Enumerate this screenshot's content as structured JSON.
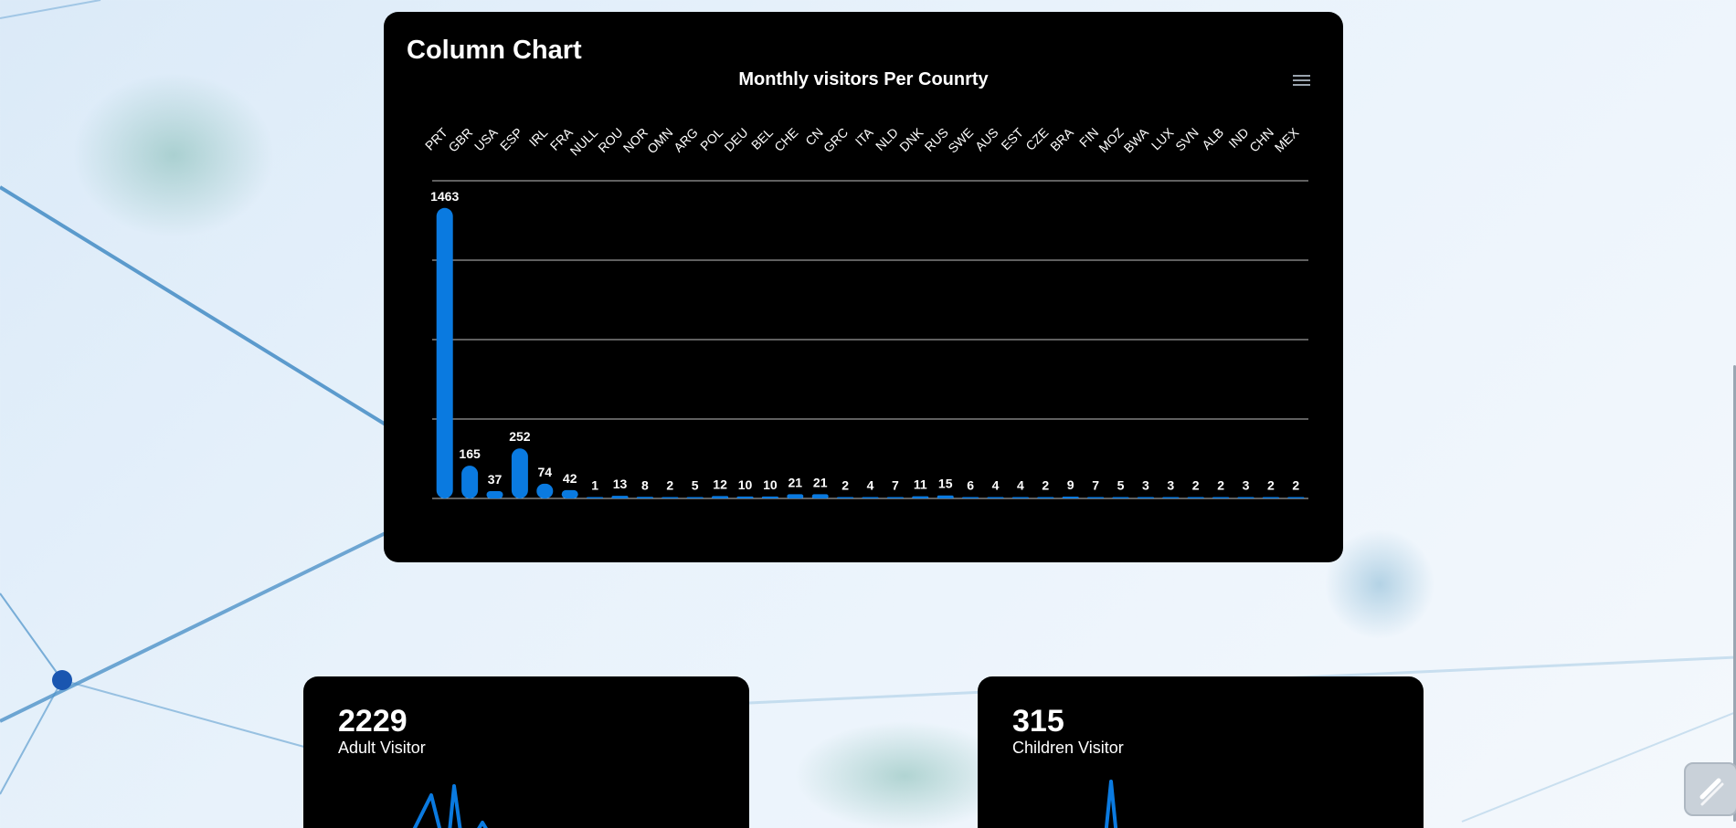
{
  "chart_card": {
    "heading": "Column Chart",
    "menu_icon": "hamburger-menu-icon"
  },
  "chart_data": {
    "type": "bar",
    "title": "Monthly visitors Per Counrty",
    "xlabel": "",
    "ylabel": "",
    "categories": [
      "PRT",
      "GBR",
      "USA",
      "ESP",
      "IRL",
      "FRA",
      "NULL",
      "ROU",
      "NOR",
      "OMN",
      "ARG",
      "POL",
      "DEU",
      "BEL",
      "CHE",
      "CN",
      "GRC",
      "ITA",
      "NLD",
      "DNK",
      "RUS",
      "SWE",
      "AUS",
      "EST",
      "CZE",
      "BRA",
      "FIN",
      "MOZ",
      "BWA",
      "LUX",
      "SVN",
      "ALB",
      "IND",
      "CHN",
      "MEX"
    ],
    "values": [
      1463,
      165,
      37,
      252,
      74,
      42,
      1,
      13,
      8,
      2,
      5,
      12,
      10,
      10,
      21,
      21,
      2,
      4,
      7,
      11,
      15,
      6,
      4,
      4,
      2,
      9,
      7,
      5,
      3,
      3,
      2,
      2,
      3,
      2,
      2
    ],
    "ylim": [
      0,
      1600
    ],
    "grid": true,
    "bar_color": "#0a7ae0",
    "data_labels": true,
    "category_labels_position": "top"
  },
  "stats": [
    {
      "value": "2229",
      "label": "Adult Visitor",
      "spark_color": "#0a7ae0"
    },
    {
      "value": "315",
      "label": "Children Visitor",
      "spark_color": "#0a7ae0"
    }
  ],
  "colors": {
    "card_bg": "#000000",
    "accent": "#0a7ae0",
    "grid": "#bfbfbf"
  }
}
